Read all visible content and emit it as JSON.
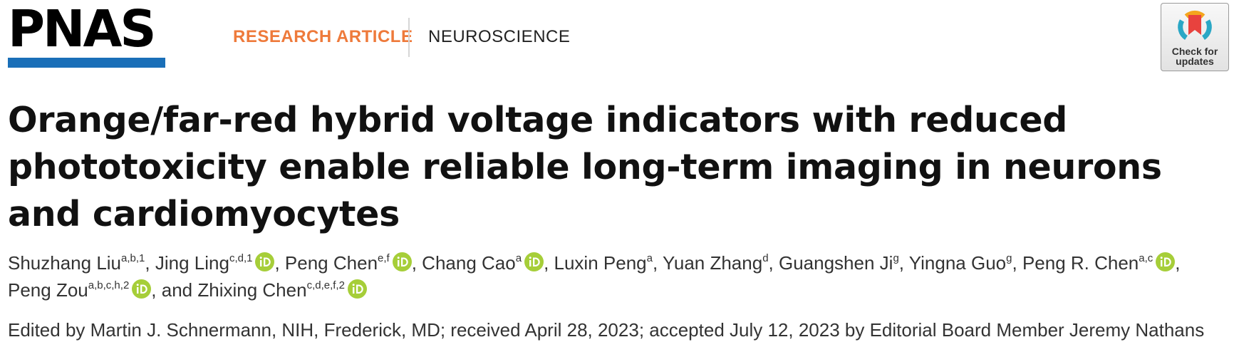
{
  "header": {
    "journal_logo": "PNAS",
    "article_type": "RESEARCH ARTICLE",
    "subject": "NEUROSCIENCE",
    "updates_badge_label": "Check for updates",
    "colors": {
      "brand_blue": "#1a6fb8",
      "article_type_orange": "#ee7a3b",
      "orcid_green": "#a6ce39"
    }
  },
  "article": {
    "title": "Orange/far-red hybrid voltage indicators with reduced phototoxicity enable reliable long-term imaging in neurons and cardiomyocytes",
    "authors": [
      {
        "name": "Shuzhang Liu",
        "affiliations": "a,b,1",
        "orcid": false,
        "suffix": ", "
      },
      {
        "name": "Jing Ling",
        "affiliations": "c,d,1",
        "orcid": true,
        "suffix": ", "
      },
      {
        "name": "Peng Chen",
        "affiliations": "e,f",
        "orcid": true,
        "suffix": ", "
      },
      {
        "name": "Chang Cao",
        "affiliations": "a",
        "orcid": true,
        "suffix": ", "
      },
      {
        "name": "Luxin Peng",
        "affiliations": "a",
        "orcid": false,
        "suffix": ", "
      },
      {
        "name": "Yuan Zhang",
        "affiliations": "d",
        "orcid": false,
        "suffix": ", "
      },
      {
        "name": "Guangshen Ji",
        "affiliations": "g",
        "orcid": false,
        "suffix": ", "
      },
      {
        "name": "Yingna Guo",
        "affiliations": "g",
        "orcid": false,
        "suffix": ", "
      },
      {
        "name": "Peng R. Chen",
        "affiliations": "a,c",
        "orcid": true,
        "suffix": ", "
      },
      {
        "name": "Peng Zou",
        "affiliations": "a,b,c,h,2",
        "orcid": true,
        "suffix": ", and "
      },
      {
        "name": "Zhixing Chen",
        "affiliations": "c,d,e,f,2",
        "orcid": true,
        "suffix": ""
      }
    ],
    "orcid_icon": "orcid-icon",
    "edited_by": "Edited by Martin J. Schnermann, NIH, Frederick, MD; received April 28, 2023; accepted July 12, 2023 by Editorial Board Member Jeremy Nathans"
  }
}
